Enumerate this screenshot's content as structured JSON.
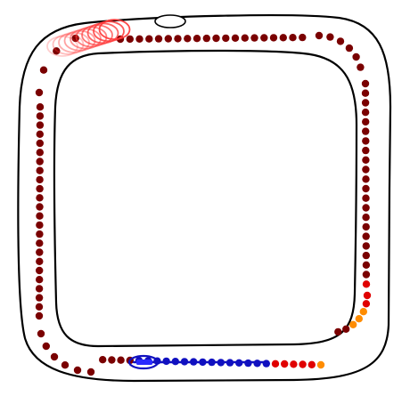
{
  "game": {
    "type": "race-track",
    "colors": {
      "background": "#ffffff",
      "track_outline": "#000000",
      "trail_default": "#7a0000",
      "trail_hot_red": "#e00000",
      "trail_orange": "#ff8c00",
      "agent_outline": "#1010c0",
      "agent_trail": "#1010c0",
      "agent_fill": "#2a2aff",
      "ghost_start": "#ff3a3a"
    },
    "icons": {
      "agent": "car-agent-icon",
      "ghost": "ghost-trail-icon",
      "checkpoint": "checkpoint-icon"
    }
  }
}
